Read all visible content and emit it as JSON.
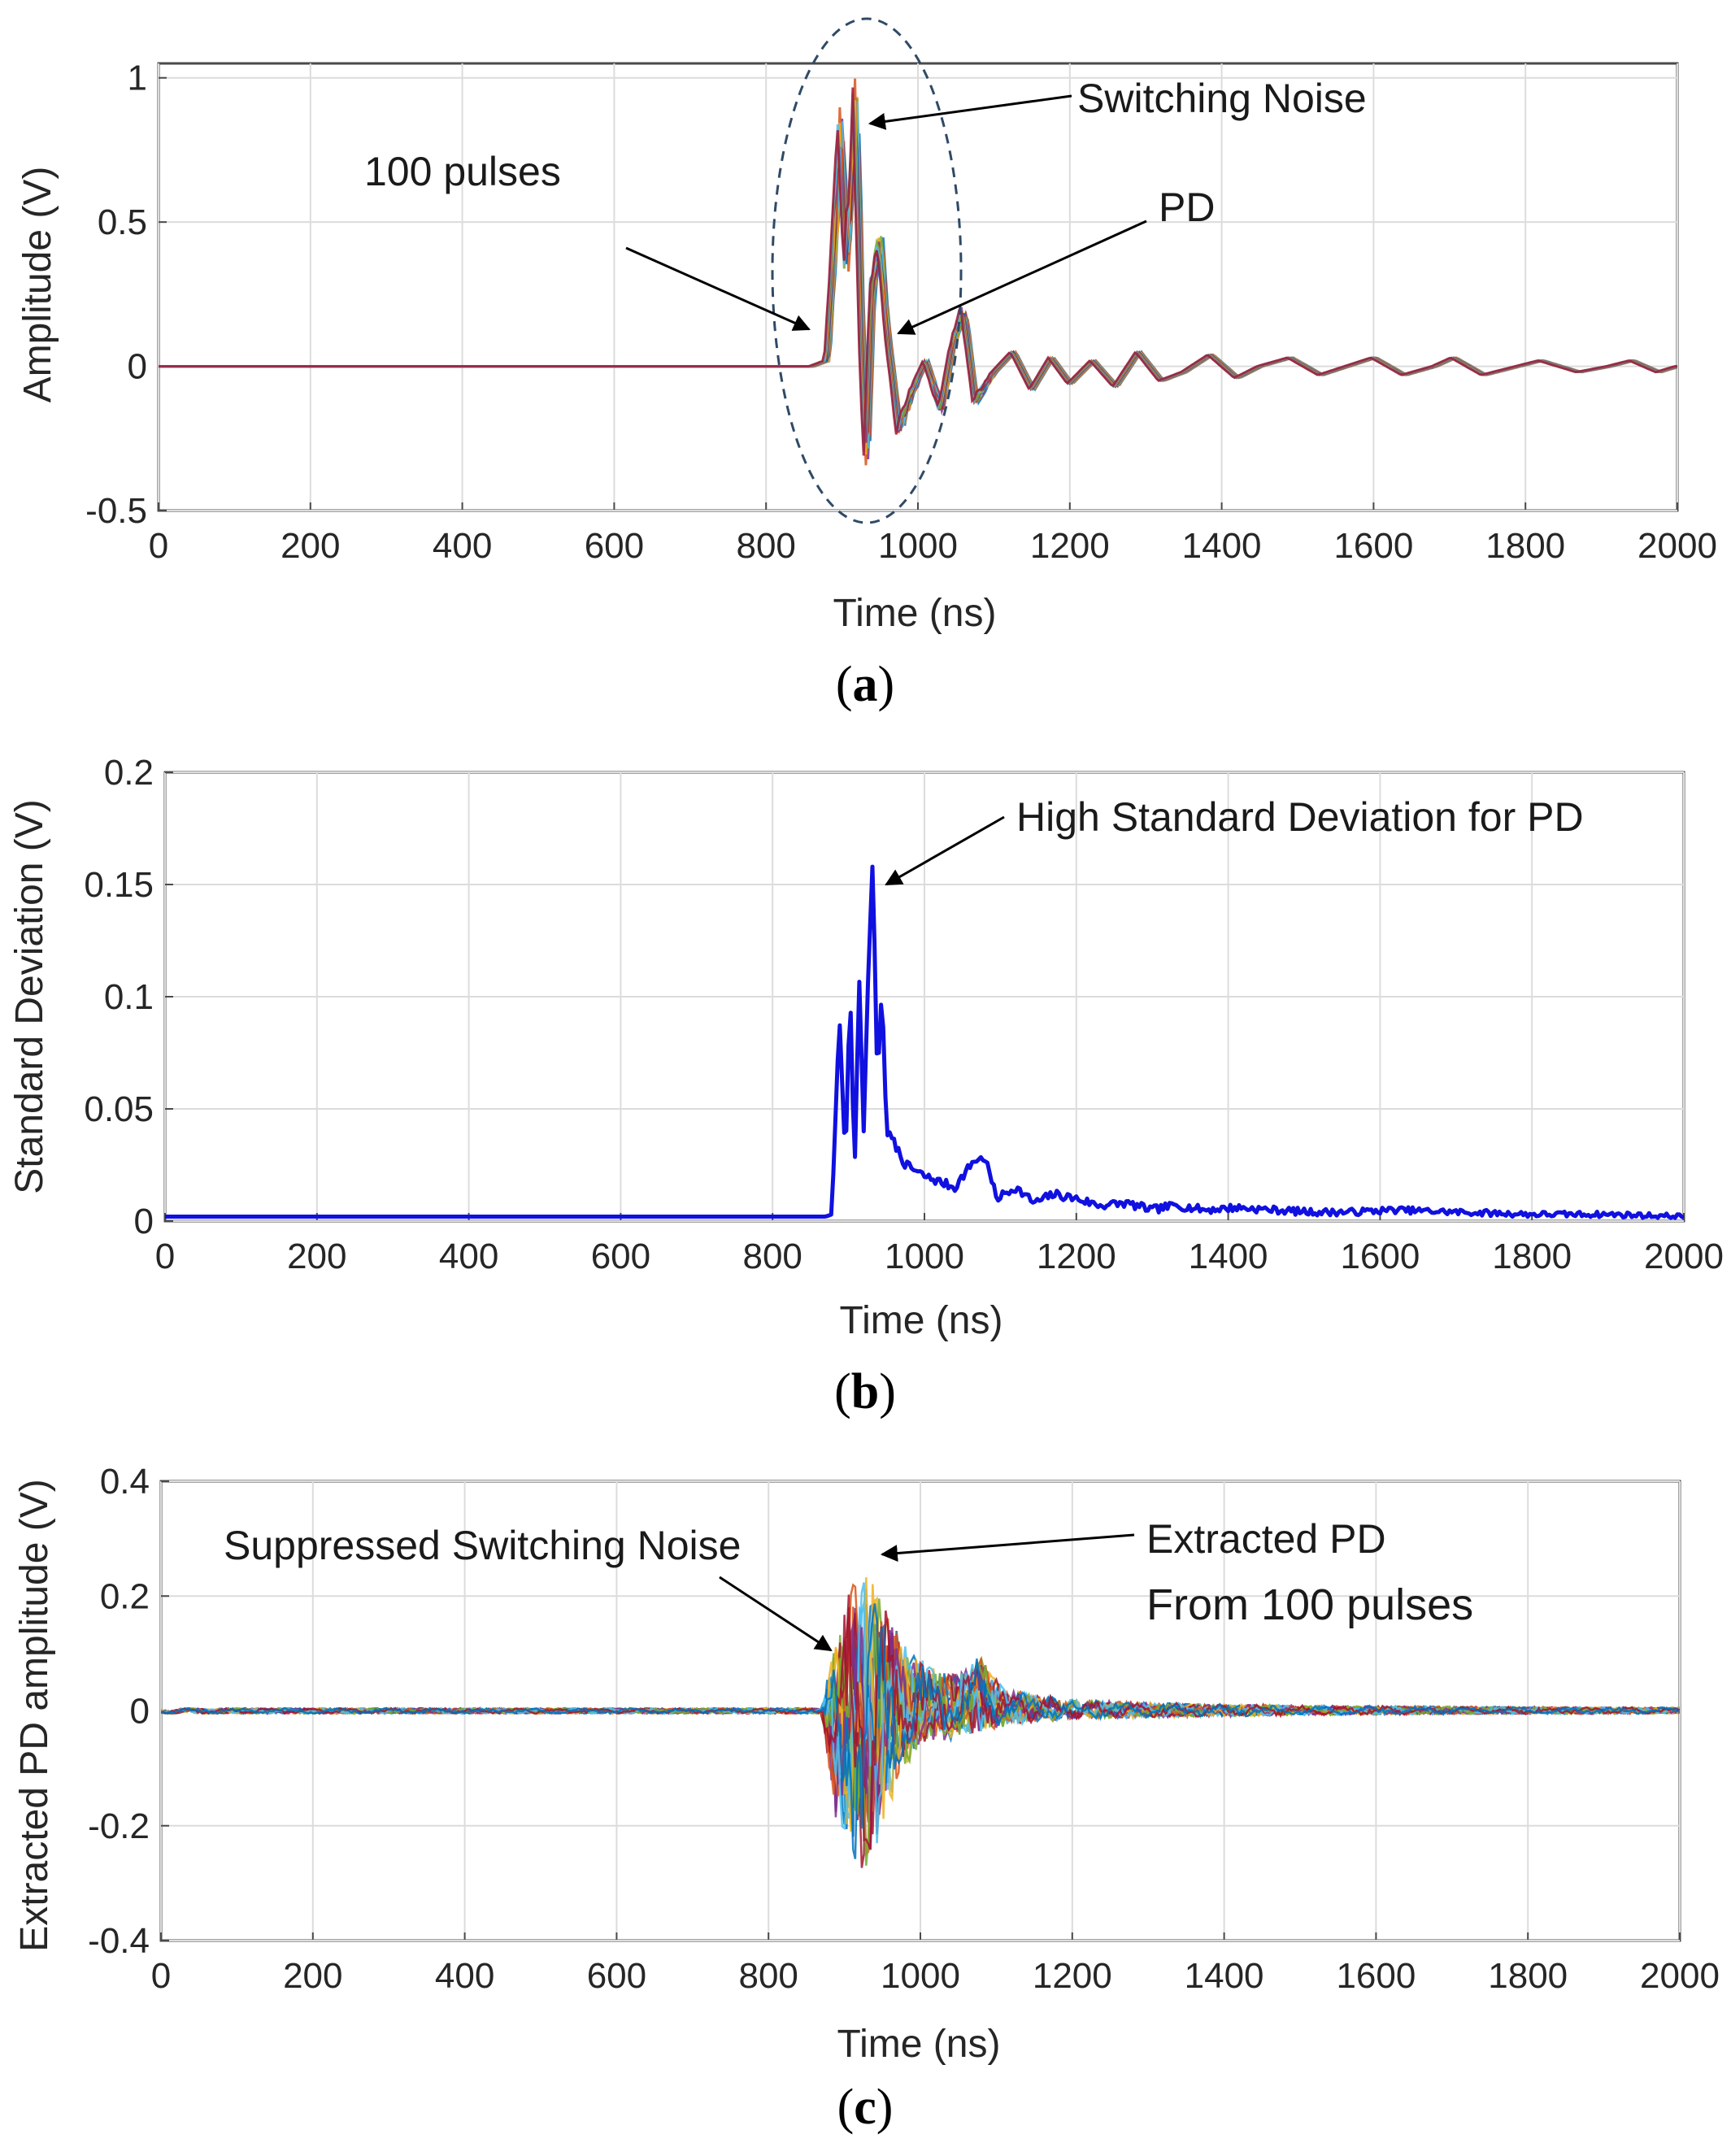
{
  "chart_data": [
    {
      "id": "a",
      "type": "line",
      "caption": "a",
      "xlabel": "Time (ns)",
      "ylabel": "Amplitude (V)",
      "xlim": [
        0,
        2000
      ],
      "ylim": [
        -0.5,
        1.05
      ],
      "xticks": [
        0,
        200,
        400,
        600,
        800,
        1000,
        1200,
        1400,
        1600,
        1800,
        2000
      ],
      "xtick_labels": [
        "0",
        "200",
        "400",
        "600",
        "800",
        "1000",
        "1200",
        "1400",
        "1600",
        "1800",
        "2000"
      ],
      "yticks": [
        -0.5,
        0,
        0.5,
        1
      ],
      "ytick_labels": [
        "-0.5",
        "0",
        "0.5",
        "1"
      ],
      "grid": true,
      "series_count": 100,
      "x": [
        0,
        780,
        860,
        880,
        890,
        898,
        905,
        912,
        918,
        925,
        932,
        940,
        950,
        960,
        975,
        990,
        1010,
        1030,
        1045,
        1060,
        1075,
        1100,
        1125,
        1150,
        1175,
        1200,
        1230,
        1260,
        1290,
        1320,
        1350,
        1385,
        1420,
        1450,
        1490,
        1530,
        1565,
        1600,
        1640,
        1680,
        1705,
        1745,
        1790,
        1820,
        1870,
        1910,
        1940,
        1975,
        2000
      ],
      "values": [
        0,
        0,
        0,
        0.02,
        0.45,
        0.85,
        0.35,
        0.6,
        0.95,
        0.15,
        -0.35,
        0.3,
        0.42,
        0.1,
        -0.22,
        -0.1,
        0.02,
        -0.15,
        0.07,
        0.2,
        -0.12,
        -0.02,
        0.05,
        -0.08,
        0.03,
        -0.06,
        0.02,
        -0.07,
        0.05,
        -0.05,
        -0.02,
        0.04,
        -0.04,
        0.0,
        0.03,
        -0.03,
        0.0,
        0.03,
        -0.03,
        0.0,
        0.03,
        -0.03,
        0.0,
        0.02,
        -0.02,
        0.0,
        0.02,
        -0.02,
        0.0
      ],
      "annotations": [
        {
          "text": "Switching Noise"
        },
        {
          "text": "100 pulses"
        },
        {
          "text": "PD"
        }
      ]
    },
    {
      "id": "b",
      "type": "line",
      "caption": "b",
      "xlabel": "Time (ns)",
      "ylabel": "Standard Deviation (V)",
      "xlim": [
        0,
        2000
      ],
      "ylim": [
        0,
        0.2
      ],
      "xticks": [
        0,
        200,
        400,
        600,
        800,
        1000,
        1200,
        1400,
        1600,
        1800,
        2000
      ],
      "xtick_labels": [
        "0",
        "200",
        "400",
        "600",
        "800",
        "1000",
        "1200",
        "1400",
        "1600",
        "1800",
        "2000"
      ],
      "yticks": [
        0,
        0.05,
        0.1,
        0.15,
        0.2
      ],
      "ytick_labels": [
        "0",
        "0.05",
        "0.1",
        "0.15",
        "0.2"
      ],
      "grid": true,
      "color": "#1010e0",
      "x": [
        0,
        870,
        878,
        888,
        896,
        902,
        908,
        914,
        920,
        926,
        932,
        938,
        944,
        950,
        960,
        975,
        1000,
        1040,
        1065,
        1080,
        1095,
        1120,
        1145,
        1170,
        1200,
        1230,
        1265,
        1300,
        1330,
        1370,
        1410,
        1460,
        1510,
        1560,
        1620,
        1700,
        1800,
        1900,
        2000
      ],
      "values": [
        0.002,
        0.002,
        0.003,
        0.092,
        0.025,
        0.105,
        0.02,
        0.11,
        0.04,
        0.11,
        0.163,
        0.06,
        0.105,
        0.04,
        0.035,
        0.025,
        0.02,
        0.015,
        0.027,
        0.028,
        0.01,
        0.015,
        0.008,
        0.012,
        0.01,
        0.007,
        0.008,
        0.005,
        0.007,
        0.005,
        0.006,
        0.005,
        0.004,
        0.004,
        0.005,
        0.004,
        0.003,
        0.003,
        0.002
      ],
      "annotations": [
        {
          "text": "High Standard Deviation for PD"
        }
      ]
    },
    {
      "id": "c",
      "type": "line",
      "caption": "c",
      "xlabel": "Time (ns)",
      "ylabel": "Extracted PD amplitude (V)",
      "xlim": [
        0,
        2000
      ],
      "ylim": [
        -0.4,
        0.4
      ],
      "xticks": [
        0,
        200,
        400,
        600,
        800,
        1000,
        1200,
        1400,
        1600,
        1800,
        2000
      ],
      "xtick_labels": [
        "0",
        "200",
        "400",
        "600",
        "800",
        "1000",
        "1200",
        "1400",
        "1600",
        "1800",
        "2000"
      ],
      "yticks": [
        -0.4,
        -0.2,
        0,
        0.2,
        0.4
      ],
      "ytick_labels": [
        "-0.4",
        "-0.2",
        "0",
        "0.2",
        "0.4"
      ],
      "grid": true,
      "series_count": 100,
      "envelope_x": [
        0,
        870,
        890,
        910,
        930,
        950,
        980,
        1010,
        1050,
        1080,
        1110,
        1150,
        1200,
        1300,
        1400,
        1500,
        1700,
        2000
      ],
      "envelope_max": [
        0.005,
        0.005,
        0.15,
        0.22,
        0.26,
        0.2,
        0.12,
        0.08,
        0.07,
        0.1,
        0.04,
        0.03,
        0.02,
        0.015,
        0.012,
        0.01,
        0.008,
        0.006
      ],
      "envelope_min": [
        -0.005,
        -0.005,
        -0.2,
        -0.27,
        -0.3,
        -0.2,
        -0.1,
        -0.06,
        -0.05,
        -0.04,
        -0.03,
        -0.02,
        -0.015,
        -0.012,
        -0.01,
        -0.008,
        -0.006,
        -0.005
      ],
      "annotations": [
        {
          "text": "Suppressed Switching Noise"
        },
        {
          "text": "Extracted PD"
        },
        {
          "text": "From 100 pulses"
        }
      ]
    }
  ]
}
